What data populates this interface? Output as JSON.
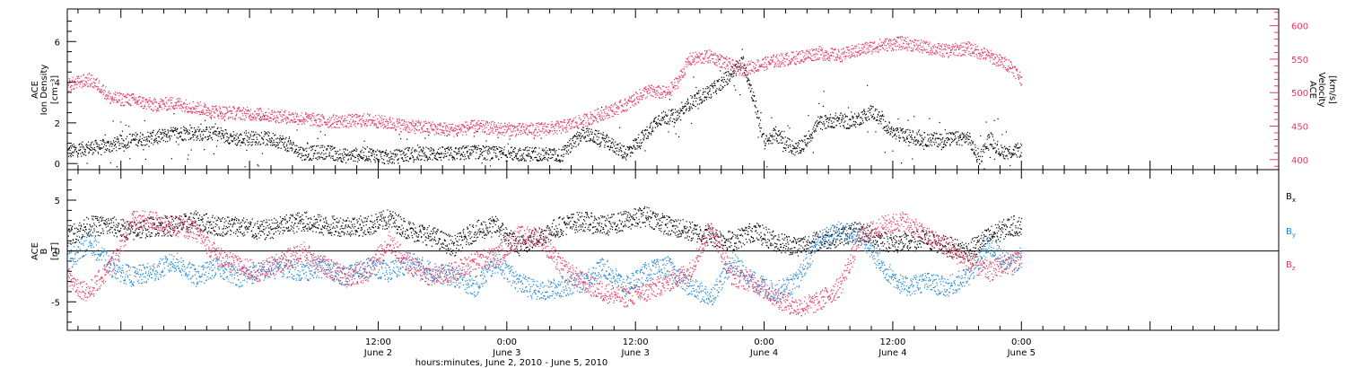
{
  "figure": {
    "xlabel": "hours:minutes, June  2, 2010 - June  5, 2010"
  },
  "chart_data": [
    {
      "type": "scatter",
      "panel": "top",
      "x_unit": "hours since 2010-06-02 00:00",
      "xlim": [
        -17,
        96
      ],
      "x_ticks": [
        {
          "x": 12,
          "time": "12:00",
          "day": "June 2"
        },
        {
          "x": 24,
          "time": "0:00",
          "day": "June 3"
        },
        {
          "x": 36,
          "time": "12:00",
          "day": "June 3"
        },
        {
          "x": 48,
          "time": "0:00",
          "day": "June 4"
        },
        {
          "x": 60,
          "time": "12:00",
          "day": "June 4"
        },
        {
          "x": 72,
          "time": "0:00",
          "day": "June 5"
        }
      ],
      "left_axis": {
        "label_lines": [
          "ACE",
          "Ion Density"
        ],
        "unit": "[cm⁻³]",
        "ylim": [
          -0.3,
          7.6
        ],
        "ticks": [
          0,
          2,
          4,
          6
        ],
        "color": "#000000"
      },
      "right_axis": {
        "label_lines": [
          "ACE",
          "Velocity"
        ],
        "unit": "[km/s]",
        "ylim": [
          385,
          625
        ],
        "ticks": [
          400,
          450,
          500,
          550,
          600
        ],
        "color": "#e8375f"
      },
      "series": [
        {
          "axis": "left",
          "color": "#000000",
          "points": [
            [
              -17,
              0.6
            ],
            [
              -15,
              0.8
            ],
            [
              -13,
              0.9
            ],
            [
              -11,
              1.2
            ],
            [
              -9,
              1.3
            ],
            [
              -7,
              1.5
            ],
            [
              -5,
              1.5
            ],
            [
              -3,
              1.5
            ],
            [
              -1,
              1.2
            ],
            [
              1,
              1.3
            ],
            [
              3,
              1.1
            ],
            [
              5,
              0.5
            ],
            [
              7,
              0.6
            ],
            [
              9,
              0.4
            ],
            [
              11,
              0.5
            ],
            [
              13,
              0.3
            ],
            [
              15,
              0.5
            ],
            [
              17,
              0.5
            ],
            [
              19,
              0.5
            ],
            [
              21,
              0.6
            ],
            [
              23,
              0.5
            ],
            [
              25,
              0.5
            ],
            [
              27,
              0.5
            ],
            [
              29,
              0.4
            ],
            [
              31,
              1.5
            ],
            [
              33,
              1.2
            ],
            [
              35,
              0.5
            ],
            [
              37,
              1.5
            ],
            [
              38,
              2.2
            ],
            [
              40,
              2.4
            ],
            [
              41,
              3.0
            ],
            [
              43,
              3.6
            ],
            [
              44,
              4.0
            ],
            [
              45,
              4.5
            ],
            [
              46,
              5.0
            ],
            [
              47,
              3.2
            ],
            [
              48,
              1.0
            ],
            [
              49,
              1.5
            ],
            [
              50,
              1.0
            ],
            [
              51,
              0.7
            ],
            [
              52,
              1.2
            ],
            [
              53,
              2.0
            ],
            [
              54,
              2.1
            ],
            [
              55,
              2.2
            ],
            [
              56,
              2.0
            ],
            [
              57,
              2.3
            ],
            [
              58,
              2.6
            ],
            [
              59,
              2.1
            ],
            [
              60,
              1.5
            ],
            [
              61,
              1.4
            ],
            [
              63,
              1.2
            ],
            [
              65,
              1.2
            ],
            [
              67,
              1.3
            ],
            [
              68,
              0.2
            ],
            [
              69,
              1.3
            ],
            [
              70,
              0.6
            ],
            [
              71,
              0.6
            ],
            [
              72,
              0.7
            ]
          ]
        },
        {
          "axis": "right",
          "color": "#e8375f",
          "points": [
            [
              -17,
              512
            ],
            [
              -15,
              520
            ],
            [
              -14,
              510
            ],
            [
              -13,
              492
            ],
            [
              -11,
              490
            ],
            [
              -9,
              482
            ],
            [
              -7,
              485
            ],
            [
              -5,
              478
            ],
            [
              -3,
              472
            ],
            [
              -1,
              470
            ],
            [
              1,
              468
            ],
            [
              3,
              465
            ],
            [
              5,
              462
            ],
            [
              7,
              458
            ],
            [
              9,
              458
            ],
            [
              11,
              460
            ],
            [
              13,
              455
            ],
            [
              15,
              450
            ],
            [
              17,
              448
            ],
            [
              19,
              445
            ],
            [
              21,
              450
            ],
            [
              23,
              447
            ],
            [
              25,
              445
            ],
            [
              27,
              446
            ],
            [
              29,
              449
            ],
            [
              31,
              458
            ],
            [
              33,
              470
            ],
            [
              35,
              482
            ],
            [
              36,
              492
            ],
            [
              37,
              503
            ],
            [
              39,
              500
            ],
            [
              40,
              520
            ],
            [
              41,
              550
            ],
            [
              43,
              555
            ],
            [
              45,
              540
            ],
            [
              46,
              535
            ],
            [
              47,
              540
            ],
            [
              49,
              548
            ],
            [
              51,
              553
            ],
            [
              53,
              560
            ],
            [
              55,
              556
            ],
            [
              57,
              565
            ],
            [
              59,
              572
            ],
            [
              61,
              575
            ],
            [
              63,
              568
            ],
            [
              65,
              563
            ],
            [
              67,
              567
            ],
            [
              69,
              555
            ],
            [
              71,
              540
            ],
            [
              72,
              520
            ]
          ]
        }
      ]
    },
    {
      "type": "scatter",
      "panel": "bottom",
      "x_unit": "hours since 2010-06-02 00:00",
      "xlim": [
        -17,
        96
      ],
      "y_axis": {
        "label_lines": [
          "ACE",
          "B"
        ],
        "unit": "[nT]",
        "ylim": [
          -7.8,
          8.0
        ],
        "ticks": [
          -5,
          0,
          5
        ]
      },
      "zero_line": true,
      "series": [
        {
          "name_base": "B",
          "name_sub": "x",
          "color": "#000000",
          "points": [
            [
              -17,
              1.5
            ],
            [
              -15,
              2.5
            ],
            [
              -13,
              2.5
            ],
            [
              -11,
              2.0
            ],
            [
              -9,
              2.5
            ],
            [
              -7,
              2.5
            ],
            [
              -5,
              3.0
            ],
            [
              -3,
              2.5
            ],
            [
              -1,
              2.5
            ],
            [
              1,
              2.0
            ],
            [
              3,
              2.5
            ],
            [
              5,
              3.0
            ],
            [
              7,
              2.5
            ],
            [
              9,
              2.5
            ],
            [
              11,
              2.5
            ],
            [
              13,
              3.2
            ],
            [
              15,
              2.0
            ],
            [
              17,
              1.5
            ],
            [
              19,
              0.5
            ],
            [
              21,
              2.0
            ],
            [
              23,
              2.5
            ],
            [
              25,
              0.5
            ],
            [
              27,
              1.5
            ],
            [
              29,
              2.5
            ],
            [
              31,
              3.0
            ],
            [
              33,
              2.5
            ],
            [
              35,
              3.0
            ],
            [
              37,
              3.5
            ],
            [
              39,
              2.5
            ],
            [
              41,
              2.0
            ],
            [
              43,
              1.5
            ],
            [
              45,
              1.0
            ],
            [
              47,
              2.0
            ],
            [
              49,
              1.0
            ],
            [
              51,
              0.5
            ],
            [
              53,
              1.0
            ],
            [
              55,
              1.5
            ],
            [
              57,
              2.0
            ],
            [
              59,
              1.0
            ],
            [
              61,
              0.8
            ],
            [
              63,
              1.2
            ],
            [
              65,
              0.5
            ],
            [
              67,
              0.0
            ],
            [
              69,
              1.5
            ],
            [
              71,
              2.5
            ],
            [
              72,
              2.5
            ]
          ]
        },
        {
          "name_base": "B",
          "name_sub": "y",
          "color": "#1f86d8",
          "points": [
            [
              -17,
              -1.0
            ],
            [
              -15,
              1.0
            ],
            [
              -13,
              -1.5
            ],
            [
              -11,
              -2.5
            ],
            [
              -9,
              -2.0
            ],
            [
              -7,
              -1.0
            ],
            [
              -5,
              -2.5
            ],
            [
              -3,
              -1.5
            ],
            [
              -1,
              -2.5
            ],
            [
              1,
              -2.0
            ],
            [
              3,
              -1.5
            ],
            [
              5,
              -2.0
            ],
            [
              7,
              -1.5
            ],
            [
              9,
              -2.5
            ],
            [
              11,
              -1.5
            ],
            [
              13,
              -2.0
            ],
            [
              15,
              -1.0
            ],
            [
              17,
              -2.0
            ],
            [
              19,
              -2.5
            ],
            [
              21,
              -3.5
            ],
            [
              23,
              -1.0
            ],
            [
              25,
              -3.0
            ],
            [
              27,
              -4.0
            ],
            [
              29,
              -3.5
            ],
            [
              31,
              -3.0
            ],
            [
              33,
              -1.5
            ],
            [
              35,
              -3.5
            ],
            [
              37,
              -2.0
            ],
            [
              39,
              -1.5
            ],
            [
              41,
              -3.5
            ],
            [
              43,
              -4.5
            ],
            [
              45,
              -1.0
            ],
            [
              47,
              -3.0
            ],
            [
              49,
              -4.0
            ],
            [
              51,
              -3.0
            ],
            [
              53,
              1.0
            ],
            [
              55,
              2.0
            ],
            [
              57,
              1.5
            ],
            [
              59,
              -1.5
            ],
            [
              61,
              -3.5
            ],
            [
              63,
              -3.0
            ],
            [
              65,
              -3.5
            ],
            [
              67,
              -2.5
            ],
            [
              69,
              0.5
            ],
            [
              71,
              -1.5
            ],
            [
              72,
              -0.5
            ]
          ]
        },
        {
          "name_base": "B",
          "name_sub": "z",
          "color": "#e8375f",
          "points": [
            [
              -17,
              -2.5
            ],
            [
              -16,
              -3.5
            ],
            [
              -15,
              -4.0
            ],
            [
              -13,
              -1.5
            ],
            [
              -11,
              3.0
            ],
            [
              -9,
              3.0
            ],
            [
              -7,
              2.5
            ],
            [
              -5,
              2.0
            ],
            [
              -3,
              -0.5
            ],
            [
              -1,
              -1.5
            ],
            [
              1,
              -2.0
            ],
            [
              3,
              -1.0
            ],
            [
              5,
              0.0
            ],
            [
              7,
              -1.5
            ],
            [
              9,
              -2.5
            ],
            [
              11,
              -2.0
            ],
            [
              13,
              1.0
            ],
            [
              15,
              -1.5
            ],
            [
              17,
              -2.5
            ],
            [
              19,
              -2.0
            ],
            [
              21,
              -1.0
            ],
            [
              23,
              -0.5
            ],
            [
              25,
              1.5
            ],
            [
              27,
              1.5
            ],
            [
              29,
              -1.5
            ],
            [
              31,
              -3.0
            ],
            [
              33,
              -4.0
            ],
            [
              35,
              -4.5
            ],
            [
              37,
              -4.0
            ],
            [
              39,
              -3.0
            ],
            [
              41,
              -2.0
            ],
            [
              43,
              2.5
            ],
            [
              45,
              -2.5
            ],
            [
              47,
              -3.0
            ],
            [
              49,
              -4.5
            ],
            [
              51,
              -5.5
            ],
            [
              53,
              -5.0
            ],
            [
              55,
              -3.5
            ],
            [
              57,
              1.5
            ],
            [
              59,
              2.5
            ],
            [
              61,
              3.0
            ],
            [
              63,
              1.5
            ],
            [
              65,
              0.5
            ],
            [
              67,
              -1.0
            ],
            [
              69,
              -2.0
            ],
            [
              71,
              -1.0
            ],
            [
              72,
              -0.5
            ]
          ]
        }
      ]
    }
  ]
}
